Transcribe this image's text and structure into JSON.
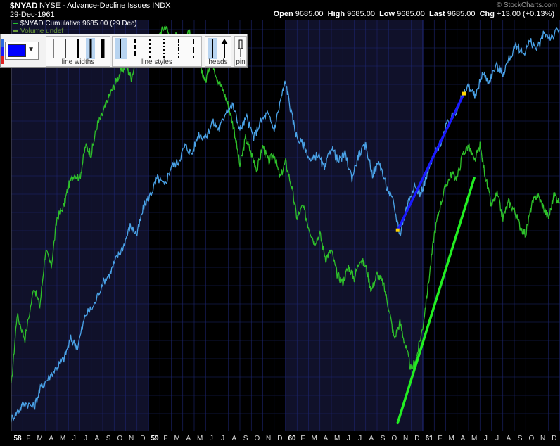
{
  "header": {
    "symbol": "$NYAD",
    "description": "NYSE - Advance-Decline Issues",
    "exchange": "INDX",
    "date": "29-Dec-1961",
    "watermark": "© StockCharts.com",
    "open_label": "Open",
    "open": "9685.00",
    "high_label": "High",
    "high": "9685.00",
    "low_label": "Low",
    "low": "9685.00",
    "last_label": "Last",
    "last": "9685.00",
    "chg_label": "Chg",
    "chg": "+13.00 (+0.13%)"
  },
  "legend": {
    "series_label": "$NYAD Cumulative 9685.00 (29 Dec)",
    "volume_label": "Volume undef"
  },
  "toolbar": {
    "selected_color": "#0000ff",
    "line_widths_label": "line widths",
    "line_styles_label": "line styles",
    "heads_label": "heads",
    "pin_label": "pin"
  },
  "colors": {
    "background": "#000000",
    "alt_band": "#10112a",
    "grid": "#1d2670",
    "cumulative_line": "#2ec02a",
    "second_line": "#4aa3e8",
    "trendline_blue": "#1a1aff",
    "trendline_green": "#22ee22"
  },
  "chart_data": {
    "type": "line",
    "title": "$NYAD NYSE - Advance-Decline Issues",
    "x_range": [
      "1958-01",
      "1961-12"
    ],
    "x_ticks": [
      "58",
      "F",
      "M",
      "A",
      "M",
      "J",
      "J",
      "A",
      "S",
      "O",
      "N",
      "D",
      "59",
      "F",
      "M",
      "A",
      "M",
      "J",
      "J",
      "A",
      "S",
      "O",
      "N",
      "D",
      "60",
      "F",
      "M",
      "A",
      "M",
      "J",
      "J",
      "A",
      "S",
      "O",
      "N",
      "D",
      "61",
      "F",
      "M",
      "A",
      "M",
      "J",
      "J",
      "A",
      "S",
      "O",
      "N",
      "D"
    ],
    "series": [
      {
        "name": "$NYAD Cumulative",
        "color": "#2ec02a",
        "points": [
          [
            0.0,
            0.1
          ],
          [
            0.5,
            0.28
          ],
          [
            1.2,
            0.22
          ],
          [
            2.0,
            0.35
          ],
          [
            2.5,
            0.3
          ],
          [
            3.0,
            0.44
          ],
          [
            3.5,
            0.4
          ],
          [
            4.0,
            0.52
          ],
          [
            4.6,
            0.55
          ],
          [
            5.0,
            0.6
          ],
          [
            5.5,
            0.63
          ],
          [
            6.0,
            0.62
          ],
          [
            6.5,
            0.7
          ],
          [
            7.0,
            0.68
          ],
          [
            7.5,
            0.75
          ],
          [
            8.0,
            0.78
          ],
          [
            8.5,
            0.82
          ],
          [
            9.0,
            0.85
          ],
          [
            9.5,
            0.88
          ],
          [
            10.0,
            0.9
          ],
          [
            10.5,
            0.87
          ],
          [
            11.0,
            0.92
          ],
          [
            11.5,
            0.9
          ],
          [
            12.0,
            0.95
          ],
          [
            12.5,
            0.93
          ],
          [
            13.0,
            0.98
          ],
          [
            13.5,
            1.0
          ],
          [
            14.0,
            0.96
          ],
          [
            14.5,
            0.98
          ],
          [
            15.0,
            0.92
          ],
          [
            15.5,
            0.99
          ],
          [
            16.0,
            0.94
          ],
          [
            16.5,
            0.9
          ],
          [
            17.0,
            0.86
          ],
          [
            17.5,
            0.92
          ],
          [
            18.0,
            0.87
          ],
          [
            18.5,
            0.84
          ],
          [
            19.0,
            0.8
          ],
          [
            19.5,
            0.74
          ],
          [
            20.0,
            0.65
          ],
          [
            20.5,
            0.72
          ],
          [
            21.0,
            0.68
          ],
          [
            21.5,
            0.64
          ],
          [
            22.0,
            0.7
          ],
          [
            22.5,
            0.66
          ],
          [
            23.0,
            0.68
          ],
          [
            23.5,
            0.62
          ],
          [
            24.0,
            0.66
          ],
          [
            24.5,
            0.6
          ],
          [
            25.0,
            0.52
          ],
          [
            25.5,
            0.55
          ],
          [
            26.0,
            0.5
          ],
          [
            26.5,
            0.46
          ],
          [
            27.0,
            0.48
          ],
          [
            27.5,
            0.42
          ],
          [
            28.0,
            0.44
          ],
          [
            28.5,
            0.38
          ],
          [
            29.0,
            0.36
          ],
          [
            29.5,
            0.4
          ],
          [
            30.0,
            0.37
          ],
          [
            30.5,
            0.42
          ],
          [
            31.0,
            0.4
          ],
          [
            31.5,
            0.34
          ],
          [
            32.0,
            0.38
          ],
          [
            32.5,
            0.36
          ],
          [
            33.0,
            0.3
          ],
          [
            33.5,
            0.22
          ],
          [
            34.0,
            0.26
          ],
          [
            34.5,
            0.2
          ],
          [
            35.0,
            0.14
          ],
          [
            35.5,
            0.18
          ],
          [
            36.0,
            0.25
          ],
          [
            36.5,
            0.36
          ],
          [
            37.0,
            0.48
          ],
          [
            37.5,
            0.55
          ],
          [
            38.0,
            0.6
          ],
          [
            38.5,
            0.63
          ],
          [
            39.0,
            0.62
          ],
          [
            39.5,
            0.68
          ],
          [
            40.0,
            0.7
          ],
          [
            40.5,
            0.66
          ],
          [
            41.0,
            0.7
          ],
          [
            41.5,
            0.62
          ],
          [
            42.0,
            0.55
          ],
          [
            42.5,
            0.58
          ],
          [
            43.0,
            0.52
          ],
          [
            43.5,
            0.56
          ],
          [
            44.0,
            0.54
          ],
          [
            44.5,
            0.5
          ],
          [
            45.0,
            0.48
          ],
          [
            45.5,
            0.55
          ],
          [
            46.0,
            0.58
          ],
          [
            46.5,
            0.55
          ],
          [
            47.0,
            0.52
          ],
          [
            47.5,
            0.58
          ],
          [
            47.95,
            0.56
          ]
        ]
      },
      {
        "name": "",
        "color": "#4aa3e8",
        "points": [
          [
            0.0,
            0.02
          ],
          [
            0.6,
            0.04
          ],
          [
            1.2,
            0.06
          ],
          [
            2.0,
            0.05
          ],
          [
            2.6,
            0.1
          ],
          [
            3.2,
            0.12
          ],
          [
            4.0,
            0.15
          ],
          [
            4.6,
            0.17
          ],
          [
            5.2,
            0.22
          ],
          [
            5.8,
            0.2
          ],
          [
            6.5,
            0.28
          ],
          [
            7.2,
            0.3
          ],
          [
            8.0,
            0.36
          ],
          [
            8.6,
            0.38
          ],
          [
            9.2,
            0.42
          ],
          [
            9.8,
            0.45
          ],
          [
            10.4,
            0.5
          ],
          [
            11.0,
            0.48
          ],
          [
            11.6,
            0.55
          ],
          [
            12.2,
            0.58
          ],
          [
            12.8,
            0.62
          ],
          [
            13.4,
            0.6
          ],
          [
            14.0,
            0.65
          ],
          [
            14.6,
            0.66
          ],
          [
            15.2,
            0.7
          ],
          [
            15.8,
            0.68
          ],
          [
            16.4,
            0.73
          ],
          [
            17.0,
            0.72
          ],
          [
            17.6,
            0.76
          ],
          [
            18.2,
            0.74
          ],
          [
            18.8,
            0.79
          ],
          [
            19.4,
            0.8
          ],
          [
            20.0,
            0.74
          ],
          [
            20.6,
            0.77
          ],
          [
            21.2,
            0.72
          ],
          [
            21.8,
            0.76
          ],
          [
            22.4,
            0.78
          ],
          [
            23.0,
            0.74
          ],
          [
            23.6,
            0.82
          ],
          [
            24.0,
            0.86
          ],
          [
            24.5,
            0.78
          ],
          [
            25.0,
            0.72
          ],
          [
            25.6,
            0.7
          ],
          [
            26.2,
            0.66
          ],
          [
            26.8,
            0.68
          ],
          [
            27.4,
            0.64
          ],
          [
            28.0,
            0.7
          ],
          [
            28.6,
            0.66
          ],
          [
            29.2,
            0.68
          ],
          [
            29.8,
            0.62
          ],
          [
            30.4,
            0.68
          ],
          [
            31.0,
            0.7
          ],
          [
            31.6,
            0.63
          ],
          [
            32.2,
            0.66
          ],
          [
            32.8,
            0.6
          ],
          [
            33.4,
            0.56
          ],
          [
            34.0,
            0.48
          ],
          [
            34.6,
            0.55
          ],
          [
            35.2,
            0.6
          ],
          [
            35.8,
            0.58
          ],
          [
            36.4,
            0.63
          ],
          [
            37.0,
            0.68
          ],
          [
            37.6,
            0.71
          ],
          [
            38.2,
            0.76
          ],
          [
            38.8,
            0.78
          ],
          [
            39.4,
            0.82
          ],
          [
            40.0,
            0.85
          ],
          [
            40.6,
            0.82
          ],
          [
            41.2,
            0.88
          ],
          [
            41.8,
            0.86
          ],
          [
            42.4,
            0.9
          ],
          [
            43.0,
            0.88
          ],
          [
            43.6,
            0.92
          ],
          [
            44.2,
            0.95
          ],
          [
            44.8,
            0.93
          ],
          [
            45.4,
            0.96
          ],
          [
            46.0,
            0.94
          ],
          [
            46.6,
            0.98
          ],
          [
            47.2,
            0.97
          ],
          [
            47.95,
            0.99
          ]
        ]
      }
    ],
    "trendlines": [
      {
        "name": "blue-trendline",
        "color": "#1a1aff",
        "from": [
          33.8,
          0.49
        ],
        "to": [
          39.6,
          0.83
        ],
        "endpoint_markers": true
      },
      {
        "name": "green-trendline",
        "color": "#22ee22",
        "from": [
          33.8,
          0.01
        ],
        "to": [
          40.5,
          0.62
        ],
        "endpoint_markers": false
      }
    ],
    "grid": true,
    "legend_position": "top-left"
  }
}
